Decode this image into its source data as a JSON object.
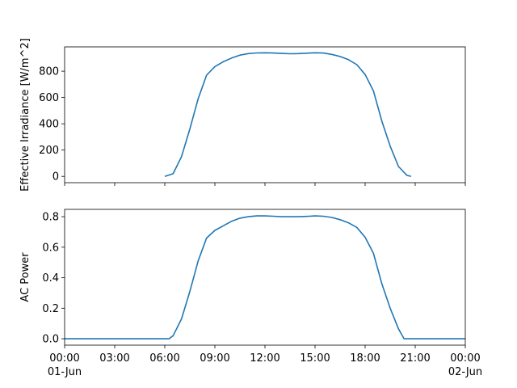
{
  "chart_data": [
    {
      "type": "line",
      "ylabel": "Effective Irradiance [W/m^2]",
      "ylim": [
        -48,
        985
      ],
      "yticks": [
        0,
        200,
        400,
        600,
        800
      ],
      "xlim": [
        "01-Jun 00:00",
        "02-Jun 00:00"
      ],
      "xticks": [
        "01-Jun 00:00",
        "01-Jun 03:00",
        "01-Jun 06:00",
        "01-Jun 09:00",
        "01-Jun 12:00",
        "01-Jun 15:00",
        "01-Jun 18:00",
        "01-Jun 21:00",
        "02-Jun 00:00"
      ],
      "xtick_labels_shown": false,
      "color": "#1f77b4",
      "grid": false,
      "x": [
        "01-Jun 06:00",
        "01-Jun 06:30",
        "01-Jun 07:00",
        "01-Jun 07:30",
        "01-Jun 08:00",
        "01-Jun 08:30",
        "01-Jun 09:00",
        "01-Jun 09:30",
        "01-Jun 10:00",
        "01-Jun 10:30",
        "01-Jun 11:00",
        "01-Jun 11:30",
        "01-Jun 12:00",
        "01-Jun 12:30",
        "01-Jun 13:00",
        "01-Jun 13:30",
        "01-Jun 14:00",
        "01-Jun 14:30",
        "01-Jun 15:00",
        "01-Jun 15:30",
        "01-Jun 16:00",
        "01-Jun 16:30",
        "01-Jun 17:00",
        "01-Jun 17:30",
        "01-Jun 18:00",
        "01-Jun 18:30",
        "01-Jun 19:00",
        "01-Jun 19:30",
        "01-Jun 20:00",
        "01-Jun 20:30",
        "01-Jun 20:45"
      ],
      "y": [
        0,
        20,
        150,
        360,
        590,
        770,
        835,
        872,
        900,
        922,
        934,
        939,
        940,
        938,
        935,
        933,
        934,
        937,
        940,
        938,
        928,
        912,
        888,
        850,
        775,
        650,
        420,
        230,
        75,
        8,
        0
      ]
    },
    {
      "type": "line",
      "ylabel": "AC Power",
      "ylim": [
        -0.042,
        0.848
      ],
      "yticks": [
        0.0,
        0.2,
        0.4,
        0.6,
        0.8
      ],
      "ytick_labels": [
        "0.0",
        "0.2",
        "0.4",
        "0.6",
        "0.8"
      ],
      "xlim": [
        "01-Jun 00:00",
        "02-Jun 00:00"
      ],
      "xticks": [
        "01-Jun 00:00",
        "01-Jun 03:00",
        "01-Jun 06:00",
        "01-Jun 09:00",
        "01-Jun 12:00",
        "01-Jun 15:00",
        "01-Jun 18:00",
        "01-Jun 21:00",
        "02-Jun 00:00"
      ],
      "xtick_labels": [
        [
          "00:00",
          "01-Jun"
        ],
        [
          "03:00"
        ],
        [
          "06:00"
        ],
        [
          "09:00"
        ],
        [
          "12:00"
        ],
        [
          "15:00"
        ],
        [
          "18:00"
        ],
        [
          "21:00"
        ],
        [
          "00:00",
          "02-Jun"
        ]
      ],
      "color": "#1f77b4",
      "grid": false,
      "x": [
        "01-Jun 00:00",
        "01-Jun 06:15",
        "01-Jun 06:30",
        "01-Jun 07:00",
        "01-Jun 07:30",
        "01-Jun 08:00",
        "01-Jun 08:30",
        "01-Jun 09:00",
        "01-Jun 09:30",
        "01-Jun 10:00",
        "01-Jun 10:30",
        "01-Jun 11:00",
        "01-Jun 11:30",
        "01-Jun 12:00",
        "01-Jun 12:30",
        "01-Jun 13:00",
        "01-Jun 13:30",
        "01-Jun 14:00",
        "01-Jun 14:30",
        "01-Jun 15:00",
        "01-Jun 15:30",
        "01-Jun 16:00",
        "01-Jun 16:30",
        "01-Jun 17:00",
        "01-Jun 17:30",
        "01-Jun 18:00",
        "01-Jun 18:30",
        "01-Jun 19:00",
        "01-Jun 19:30",
        "01-Jun 20:00",
        "01-Jun 20:20",
        "02-Jun 00:00"
      ],
      "y": [
        0,
        0,
        0.02,
        0.13,
        0.31,
        0.51,
        0.66,
        0.71,
        0.74,
        0.77,
        0.79,
        0.8,
        0.805,
        0.805,
        0.803,
        0.8,
        0.8,
        0.8,
        0.802,
        0.805,
        0.803,
        0.795,
        0.78,
        0.76,
        0.73,
        0.665,
        0.56,
        0.36,
        0.2,
        0.065,
        0,
        0
      ]
    }
  ]
}
